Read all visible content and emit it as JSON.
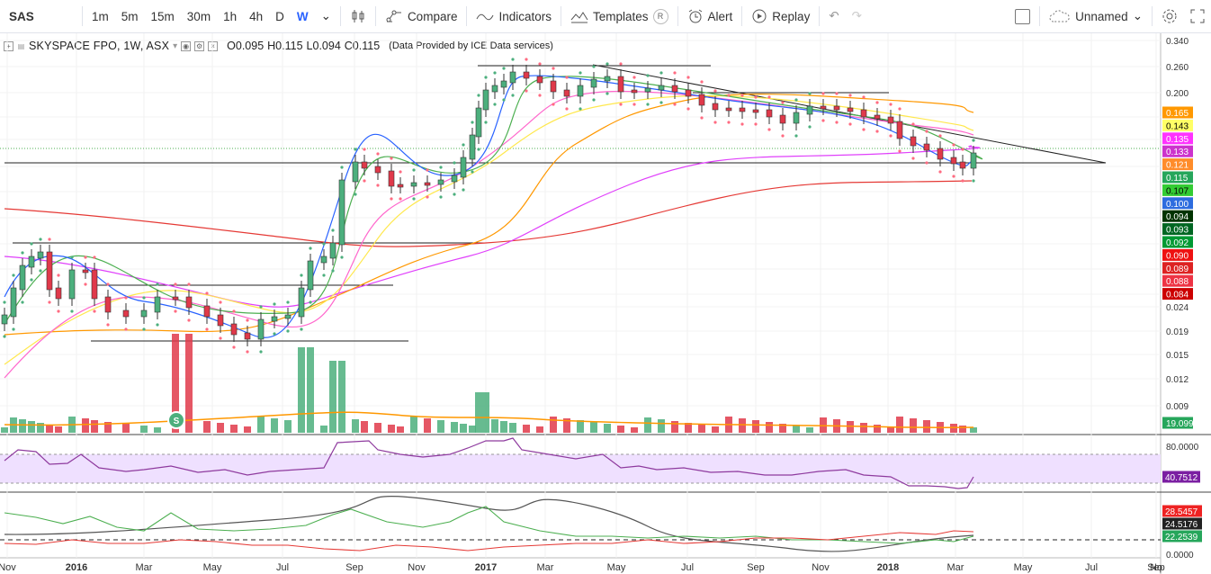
{
  "toolbar": {
    "symbol": "SAS",
    "intervals": [
      "1m",
      "5m",
      "15m",
      "30m",
      "1h",
      "4h",
      "D",
      "W"
    ],
    "active_interval": "W",
    "compare": "Compare",
    "indicators": "Indicators",
    "templates": "Templates",
    "templates_key": "R",
    "alert": "Alert",
    "replay": "Replay",
    "layout_name": "Unnamed"
  },
  "legend": {
    "title": "SKYSPACE FPO, 1W, ASX",
    "open": "O0.095",
    "high": "H0.115",
    "low": "L0.094",
    "close": "C0.115",
    "provider": "(Data Provided by ICE Data services)"
  },
  "price_axis": {
    "ticks": [
      "0.340",
      "0.260",
      "0.200",
      "0.024",
      "0.019",
      "0.015",
      "0.012",
      "0.009"
    ],
    "badges": [
      {
        "text": "0.165",
        "bg": "#ff9800",
        "fg": "#ffffff"
      },
      {
        "text": "0.143",
        "bg": "#ffff66",
        "fg": "#000000"
      },
      {
        "text": "0.135",
        "bg": "#ff33ff",
        "fg": "#ffffff"
      },
      {
        "text": "0.133",
        "bg": "#cc33cc",
        "fg": "#ffffff"
      },
      {
        "text": "0.121",
        "bg": "#ff8c2a",
        "fg": "#ffffff"
      },
      {
        "text": "0.115",
        "bg": "#26a65b",
        "fg": "#ffffff"
      },
      {
        "text": "0.107",
        "bg": "#33cc33",
        "fg": "#000000"
      },
      {
        "text": "0.100",
        "bg": "#2d6cdf",
        "fg": "#ffffff"
      },
      {
        "text": "0.094",
        "bg": "#003300",
        "fg": "#ffffff"
      },
      {
        "text": "0.093",
        "bg": "#006622",
        "fg": "#ffffff"
      },
      {
        "text": "0.092",
        "bg": "#009933",
        "fg": "#ffffff"
      },
      {
        "text": "0.090",
        "bg": "#ee1111",
        "fg": "#ffffff"
      },
      {
        "text": "0.089",
        "bg": "#dd2222",
        "fg": "#ffffff"
      },
      {
        "text": "0.088",
        "bg": "#ee3344",
        "fg": "#ffffff"
      },
      {
        "text": "0.084",
        "bg": "#cc0000",
        "fg": "#ffffff"
      }
    ],
    "volume_badge": "19.099M"
  },
  "rsi": {
    "ticks": [
      "80.0000"
    ],
    "value_badge": "40.7512"
  },
  "dmi": {
    "badges": [
      {
        "text": "28.5457",
        "bg": "#ee2222",
        "fg": "#ffffff"
      },
      {
        "text": "24.5176",
        "bg": "#222222",
        "fg": "#ffffff"
      },
      {
        "text": "22.2539",
        "bg": "#26a65b",
        "fg": "#ffffff"
      }
    ],
    "zero_tick": "0.0000"
  },
  "time_axis": [
    "Nov",
    "2016",
    "Mar",
    "May",
    "Jul",
    "Sep",
    "Nov",
    "2017",
    "Mar",
    "May",
    "Jul",
    "Sep",
    "Nov",
    "2018",
    "Mar",
    "May",
    "Jul",
    "Sep",
    "No"
  ],
  "colors": {
    "up": "#4caf7d",
    "down": "#e0394a",
    "ma_red": "#e53935",
    "ma_magenta": "#e040fb",
    "ma_orange": "#ff9800",
    "ma_yellow": "#ffeb3b",
    "ma_green": "#4caf50",
    "ma_blue": "#2962ff",
    "rsi_band": "#efe0ff"
  },
  "marker": "S"
}
